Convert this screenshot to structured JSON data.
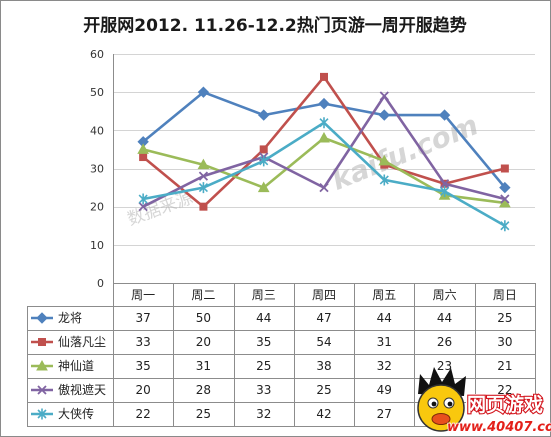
{
  "chart_data": {
    "type": "line",
    "title": "开服网2012. 11.26-12.2热门页游一周开服趋势",
    "categories": [
      "周一",
      "周二",
      "周三",
      "周四",
      "周五",
      "周六",
      "周日"
    ],
    "y_ticks": [
      0,
      10,
      20,
      30,
      40,
      50,
      60
    ],
    "ylim": [
      0,
      60
    ],
    "grid": true,
    "legend": "data-table",
    "series": [
      {
        "name": "龙将",
        "values": [
          37,
          50,
          44,
          47,
          44,
          44,
          25
        ],
        "color": "#4F81BD",
        "marker": "diamond"
      },
      {
        "name": "仙落凡尘",
        "values": [
          33,
          20,
          35,
          54,
          31,
          26,
          30
        ],
        "color": "#C0504D",
        "marker": "square"
      },
      {
        "name": "神仙道",
        "values": [
          35,
          31,
          25,
          38,
          32,
          23,
          21
        ],
        "color": "#9BBB59",
        "marker": "triangle"
      },
      {
        "name": "傲视遮天",
        "values": [
          20,
          28,
          33,
          25,
          49,
          26,
          22
        ],
        "color": "#8064A2",
        "marker": "x"
      },
      {
        "name": "大侠传",
        "values": [
          22,
          25,
          32,
          42,
          27,
          24,
          15
        ],
        "color": "#4BACC6",
        "marker": "star"
      }
    ]
  },
  "watermark": {
    "left": "数据来源",
    "right": "kaifu.com"
  },
  "logo": {
    "name": "网页游戏",
    "url": "www.40407.com",
    "icon": "mascot-face-icon"
  }
}
